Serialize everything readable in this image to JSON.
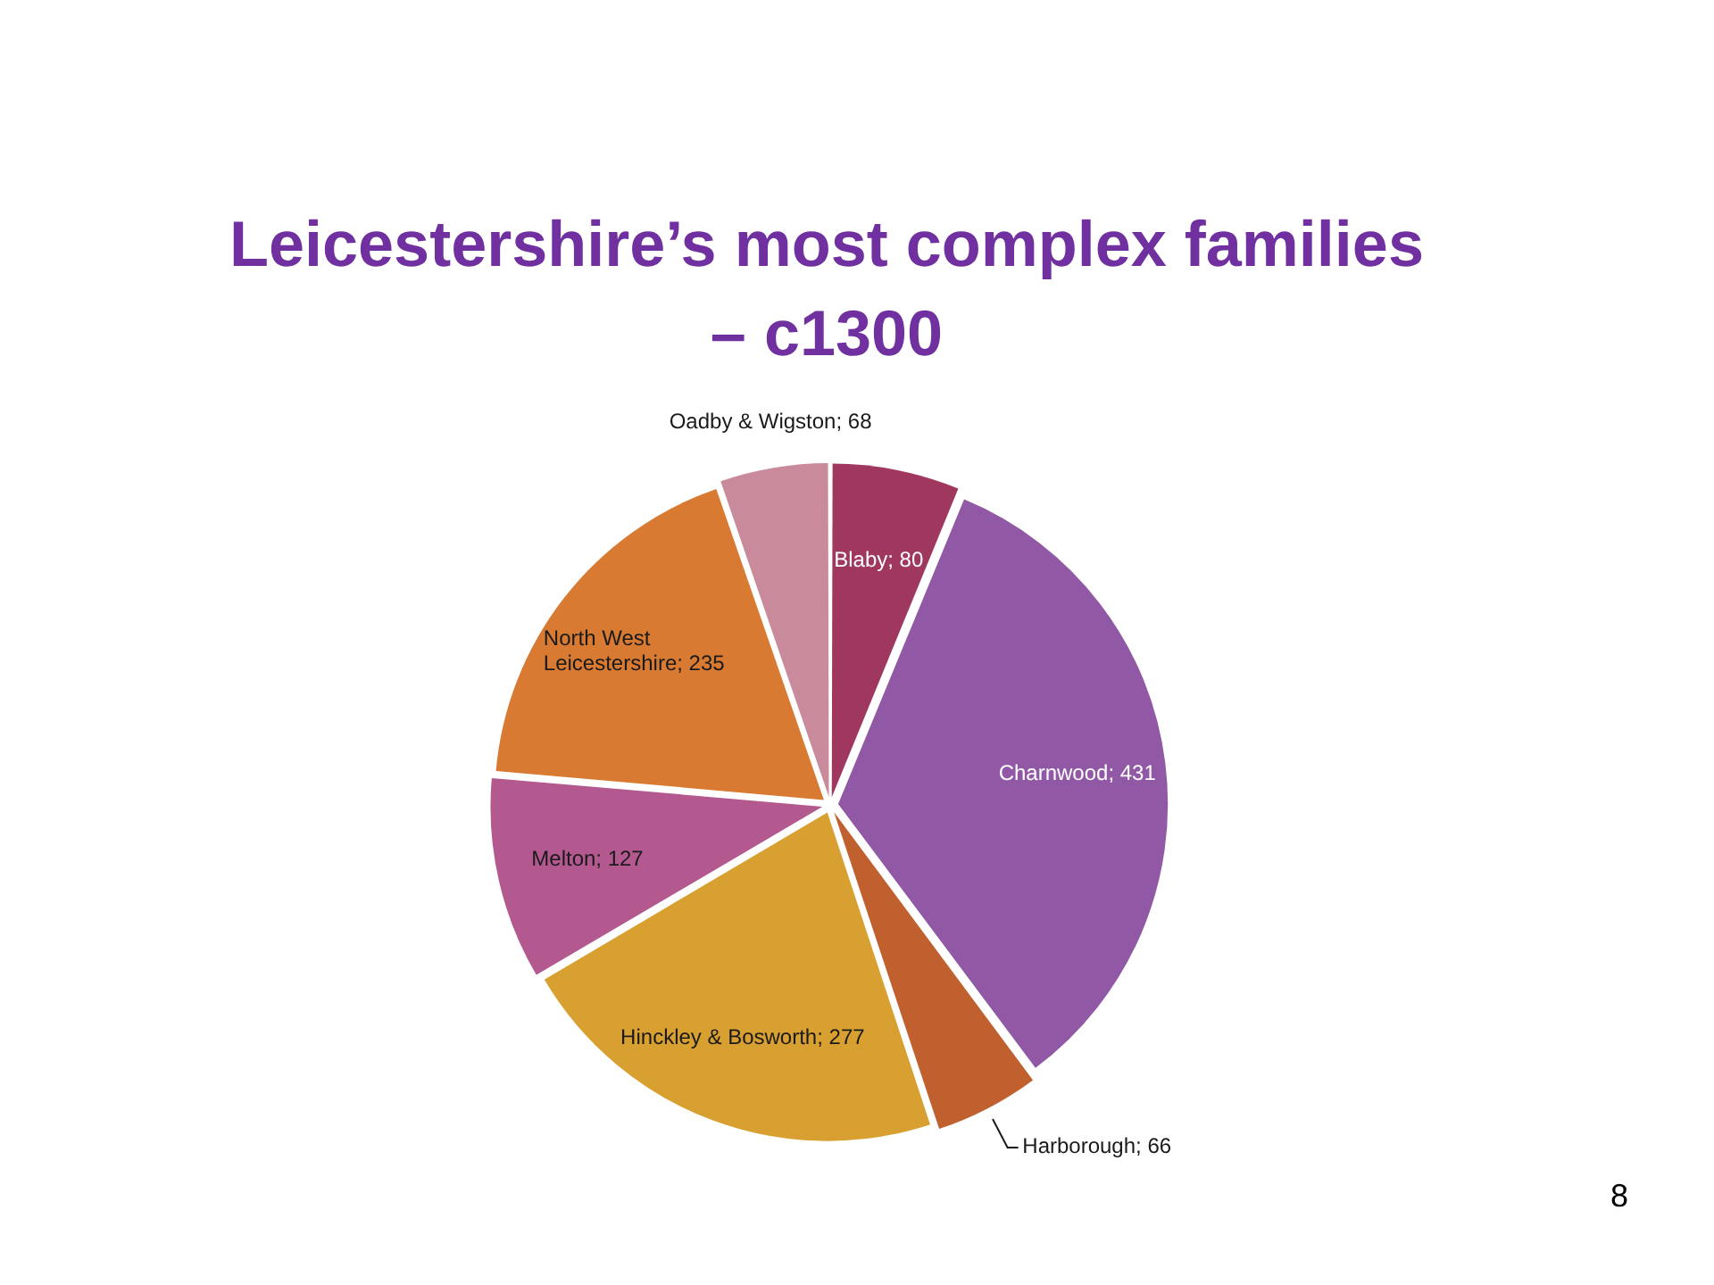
{
  "chart_data": {
    "type": "pie",
    "title": "Leicestershire’s most complex families – c1300",
    "categories": [
      "Blaby",
      "Charnwood",
      "Harborough",
      "Hinckley & Bosworth",
      "Melton",
      "North West Leicestershire",
      "Oadby & Wigston"
    ],
    "values": [
      80,
      431,
      66,
      277,
      127,
      235,
      68
    ],
    "value_labels": [
      "; 80",
      "; 431",
      "; 66",
      "; 277",
      "; 127",
      "; 235",
      "; 68"
    ],
    "colors": [
      "#a0375f",
      "#9159a5",
      "#c0602e",
      "#d8a030",
      "#b3598f",
      "#d87a32",
      "#c98a9b"
    ],
    "legend": false,
    "annotations": [
      "8"
    ]
  }
}
